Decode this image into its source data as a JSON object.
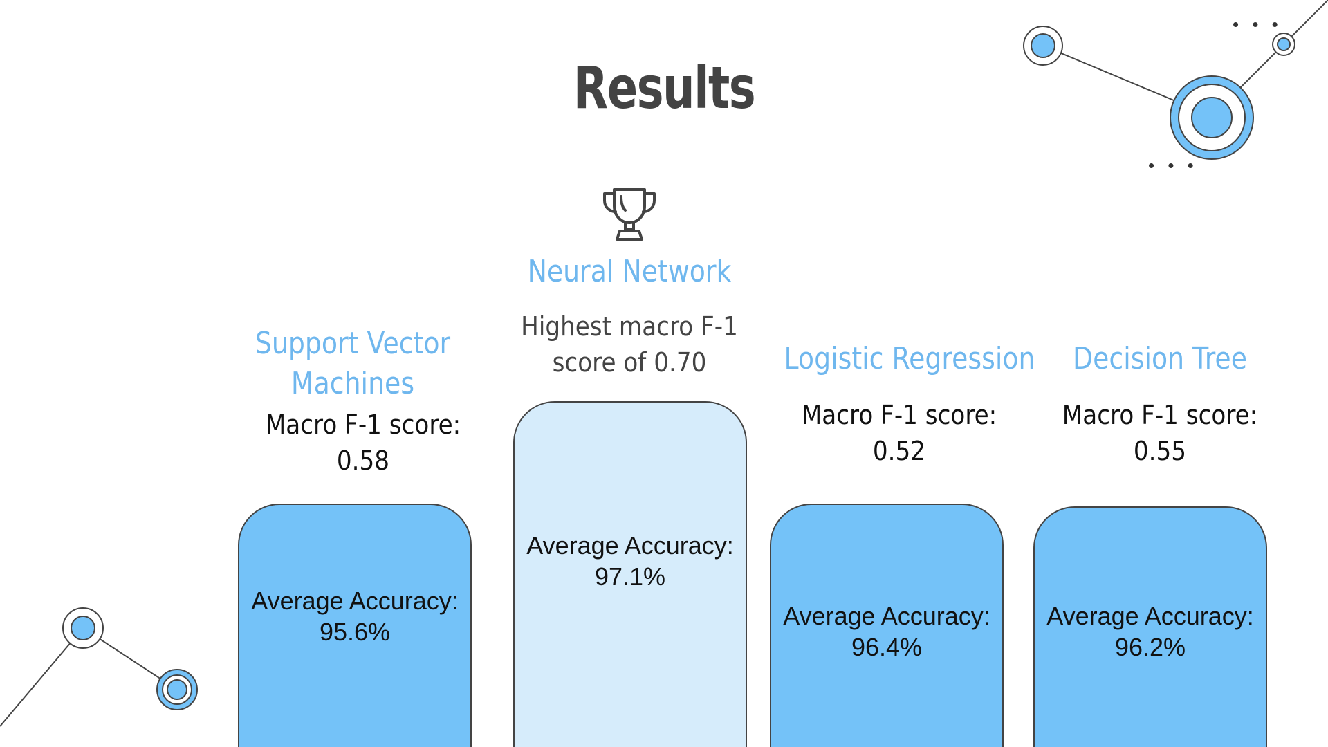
{
  "title": "Results",
  "winner_icon": "trophy-icon",
  "accent_color": "#74c2f8",
  "winner_bar_color": "#d6ecfb",
  "models": [
    {
      "name_line1": "Support Vector",
      "name_line2": "Machines",
      "score_line1": "Macro F-1 score:",
      "score_line2": "0.58",
      "acc_label": "Average Accuracy:",
      "acc_value": "95.6%",
      "accuracy": 95.6
    },
    {
      "name_line1": "Neural Network",
      "score_line1": "Highest macro F-1",
      "score_line2": "score of 0.70",
      "acc_label": "Average Accuracy:",
      "acc_value": "97.1%",
      "accuracy": 97.1
    },
    {
      "name_line1": "Logistic Regression",
      "score_line1": "Macro F-1 score:",
      "score_line2": "0.52",
      "acc_label": "Average Accuracy:",
      "acc_value": "96.4%",
      "accuracy": 96.4
    },
    {
      "name_line1": "Decision Tree",
      "score_line1": "Macro F-1 score:",
      "score_line2": "0.55",
      "acc_label": "Average Accuracy:",
      "acc_value": "96.2%",
      "accuracy": 96.2
    }
  ],
  "decorations": {
    "ellipsis": "• • •"
  }
}
